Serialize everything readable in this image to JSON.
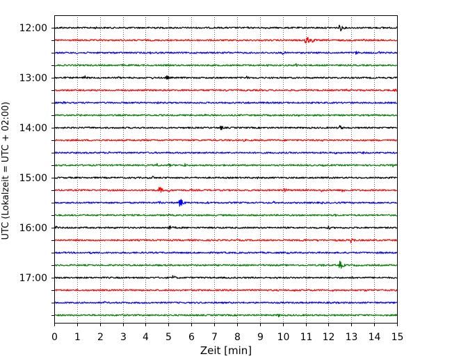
{
  "chart_data": {
    "type": "line",
    "title": "",
    "xlabel": "Zeit  [min]",
    "ylabel": "UTC (Lokalzeit = UTC + 02:00)",
    "xlim": [
      0,
      15
    ],
    "x_ticks": [
      "0",
      "1",
      "2",
      "3",
      "4",
      "5",
      "6",
      "7",
      "8",
      "9",
      "10",
      "11",
      "12",
      "13",
      "14",
      "15"
    ],
    "y_time_ticks": [
      "12:00",
      "13:00",
      "14:00",
      "15:00",
      "16:00",
      "17:00"
    ],
    "trace_interval_minutes": 15,
    "start_time": "12:00",
    "end_time": "17:45",
    "grid": "vertical dotted",
    "trace_colors": [
      "#000000",
      "#ff0000",
      "#0000ff",
      "#008000"
    ],
    "traces": [
      {
        "start": "12:00",
        "color": "#000000",
        "events": [
          {
            "t": 0.3,
            "amp": 2
          },
          {
            "t": 1.8,
            "amp": 2
          },
          {
            "t": 3.2,
            "amp": 2
          },
          {
            "t": 4.3,
            "amp": 3
          },
          {
            "t": 8.4,
            "amp": 2
          },
          {
            "t": 9.2,
            "amp": 2
          },
          {
            "t": 12.5,
            "amp": 6
          },
          {
            "t": 14.4,
            "amp": 2
          }
        ]
      },
      {
        "start": "12:15",
        "color": "#ff0000",
        "events": [
          {
            "t": 11.0,
            "amp": 9
          },
          {
            "t": 11.3,
            "amp": 4
          },
          {
            "t": 13.5,
            "amp": 3
          }
        ]
      },
      {
        "start": "12:30",
        "color": "#0000ff",
        "events": [
          {
            "t": 1.0,
            "amp": 2
          },
          {
            "t": 4.2,
            "amp": 2
          },
          {
            "t": 7.6,
            "amp": 2
          },
          {
            "t": 10.0,
            "amp": 3
          },
          {
            "t": 13.2,
            "amp": 3
          },
          {
            "t": 14.2,
            "amp": 3
          }
        ]
      },
      {
        "start": "12:45",
        "color": "#008000",
        "events": [
          {
            "t": 3.0,
            "amp": 2
          },
          {
            "t": 9.3,
            "amp": 2
          },
          {
            "t": 10.6,
            "amp": 4
          },
          {
            "t": 11.6,
            "amp": 2
          }
        ]
      },
      {
        "start": "13:00",
        "color": "#000000",
        "events": [
          {
            "t": 0.5,
            "amp": 2
          },
          {
            "t": 1.3,
            "amp": 4
          },
          {
            "t": 2.8,
            "amp": 2
          },
          {
            "t": 4.3,
            "amp": 2
          },
          {
            "t": 4.9,
            "amp": 4
          },
          {
            "t": 8.4,
            "amp": 3
          }
        ]
      },
      {
        "start": "13:15",
        "color": "#ff0000",
        "events": [
          {
            "t": 3.7,
            "amp": 2
          },
          {
            "t": 7.5,
            "amp": 2
          },
          {
            "t": 12.8,
            "amp": 2
          },
          {
            "t": 14.9,
            "amp": 3
          }
        ]
      },
      {
        "start": "13:30",
        "color": "#0000ff",
        "events": [
          {
            "t": 0.4,
            "amp": 2
          },
          {
            "t": 4.5,
            "amp": 2
          },
          {
            "t": 8.5,
            "amp": 2
          },
          {
            "t": 13.0,
            "amp": 2
          }
        ]
      },
      {
        "start": "13:45",
        "color": "#008000",
        "events": [
          {
            "t": 1.1,
            "amp": 2
          },
          {
            "t": 6.6,
            "amp": 2
          },
          {
            "t": 9.0,
            "amp": 2
          },
          {
            "t": 10.7,
            "amp": 2
          }
        ]
      },
      {
        "start": "14:00",
        "color": "#000000",
        "events": [
          {
            "t": 1.5,
            "amp": 2
          },
          {
            "t": 7.3,
            "amp": 4
          },
          {
            "t": 12.5,
            "amp": 4
          }
        ]
      },
      {
        "start": "14:15",
        "color": "#ff0000",
        "events": [
          {
            "t": 4.0,
            "amp": 2
          },
          {
            "t": 8.3,
            "amp": 2
          },
          {
            "t": 11.7,
            "amp": 2
          }
        ]
      },
      {
        "start": "14:30",
        "color": "#0000ff",
        "events": [
          {
            "t": 2.4,
            "amp": 2
          },
          {
            "t": 6.6,
            "amp": 2
          },
          {
            "t": 12.3,
            "amp": 2
          },
          {
            "t": 13.5,
            "amp": 2
          }
        ]
      },
      {
        "start": "14:45",
        "color": "#008000",
        "events": [
          {
            "t": 4.5,
            "amp": 3
          },
          {
            "t": 5.0,
            "amp": 3
          },
          {
            "t": 5.7,
            "amp": 3
          },
          {
            "t": 11.8,
            "amp": 2
          },
          {
            "t": 14.8,
            "amp": 3
          }
        ]
      },
      {
        "start": "15:00",
        "color": "#000000",
        "events": [
          {
            "t": 3.5,
            "amp": 2
          },
          {
            "t": 4.3,
            "amp": 3
          },
          {
            "t": 4.9,
            "amp": 2
          },
          {
            "t": 8.9,
            "amp": 2
          },
          {
            "t": 12.0,
            "amp": 2
          }
        ]
      },
      {
        "start": "15:15",
        "color": "#ff0000",
        "events": [
          {
            "t": 4.6,
            "amp": 6
          },
          {
            "t": 5.0,
            "amp": 3
          },
          {
            "t": 6.0,
            "amp": 2
          },
          {
            "t": 10.1,
            "amp": 4
          },
          {
            "t": 11.7,
            "amp": 3
          },
          {
            "t": 12.6,
            "amp": 4
          }
        ]
      },
      {
        "start": "15:30",
        "color": "#0000ff",
        "events": [
          {
            "t": 4.6,
            "amp": 3
          },
          {
            "t": 5.5,
            "amp": 8
          },
          {
            "t": 6.7,
            "amp": 2
          },
          {
            "t": 9.6,
            "amp": 2
          },
          {
            "t": 11.7,
            "amp": 2
          },
          {
            "t": 12.2,
            "amp": 2
          }
        ]
      },
      {
        "start": "15:45",
        "color": "#008000",
        "events": [
          {
            "t": 5.0,
            "amp": 2
          },
          {
            "t": 8.6,
            "amp": 2
          },
          {
            "t": 12.3,
            "amp": 2
          },
          {
            "t": 14.9,
            "amp": 2
          }
        ]
      },
      {
        "start": "16:00",
        "color": "#000000",
        "events": [
          {
            "t": 0.1,
            "amp": 3
          },
          {
            "t": 2.6,
            "amp": 2
          },
          {
            "t": 5.0,
            "amp": 5
          },
          {
            "t": 5.3,
            "amp": 2
          },
          {
            "t": 12.0,
            "amp": 3
          }
        ]
      },
      {
        "start": "16:15",
        "color": "#ff0000",
        "events": [
          {
            "t": 10.9,
            "amp": 3
          },
          {
            "t": 11.5,
            "amp": 2
          },
          {
            "t": 12.3,
            "amp": 2
          },
          {
            "t": 13.0,
            "amp": 5
          }
        ]
      },
      {
        "start": "16:30",
        "color": "#0000ff",
        "events": [
          {
            "t": 1.6,
            "amp": 2
          },
          {
            "t": 7.1,
            "amp": 2
          },
          {
            "t": 10.2,
            "amp": 2
          },
          {
            "t": 14.3,
            "amp": 2
          }
        ]
      },
      {
        "start": "16:45",
        "color": "#008000",
        "events": [
          {
            "t": 4.5,
            "amp": 2
          },
          {
            "t": 11.7,
            "amp": 3
          },
          {
            "t": 12.5,
            "amp": 7
          },
          {
            "t": 13.2,
            "amp": 2
          }
        ]
      },
      {
        "start": "17:00",
        "color": "#000000",
        "events": [
          {
            "t": 4.7,
            "amp": 2
          },
          {
            "t": 5.2,
            "amp": 4
          },
          {
            "t": 9.7,
            "amp": 2
          },
          {
            "t": 13.0,
            "amp": 2
          }
        ]
      },
      {
        "start": "17:15",
        "color": "#ff0000",
        "events": [
          {
            "t": 10.5,
            "amp": 2
          },
          {
            "t": 12.2,
            "amp": 2
          },
          {
            "t": 13.6,
            "amp": 2
          }
        ]
      },
      {
        "start": "17:30",
        "color": "#0000ff",
        "events": [
          {
            "t": 2.2,
            "amp": 2
          },
          {
            "t": 12.3,
            "amp": 2
          },
          {
            "t": 14.0,
            "amp": 2
          }
        ]
      },
      {
        "start": "17:45",
        "color": "#008000",
        "events": [
          {
            "t": 3.0,
            "amp": 2
          },
          {
            "t": 9.8,
            "amp": 3
          },
          {
            "t": 11.0,
            "amp": 2
          }
        ]
      }
    ]
  }
}
